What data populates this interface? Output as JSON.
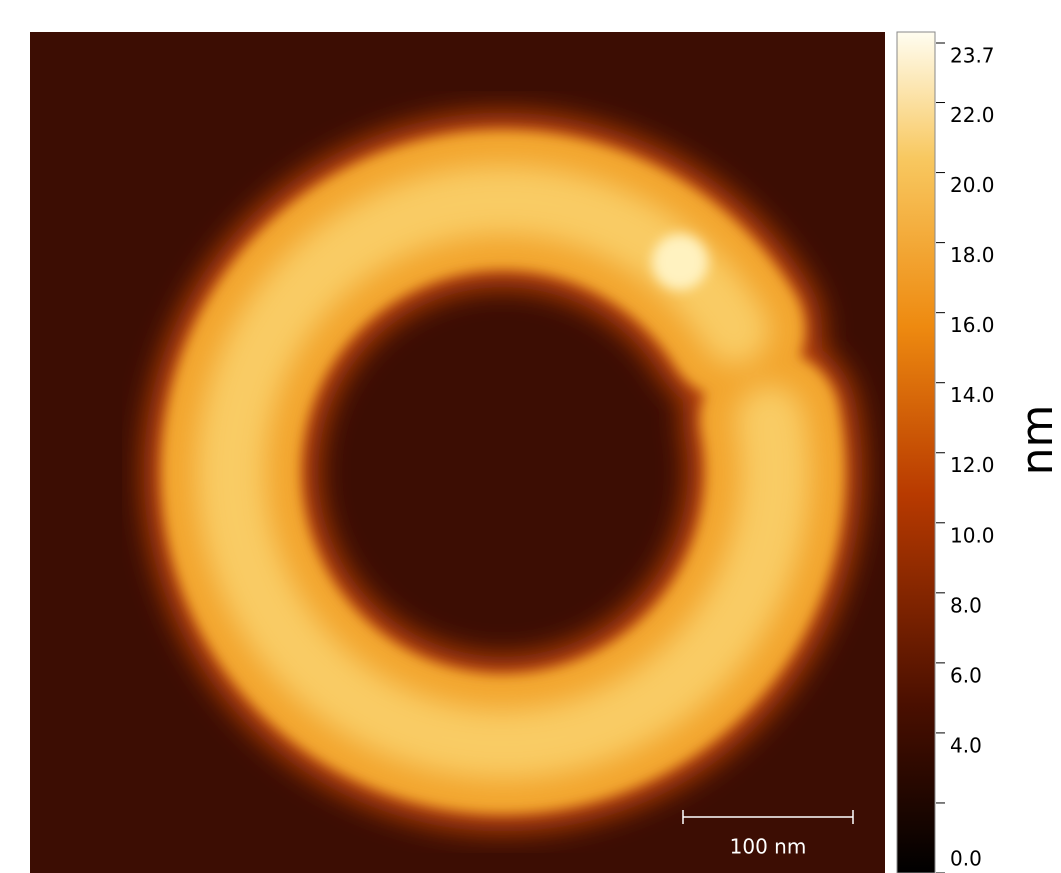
{
  "image": {
    "colorbar": {
      "range": [
        0,
        23.7
      ],
      "ticks": [
        {
          "value": 23.7,
          "label": "23.7"
        },
        {
          "value": 22,
          "label": "22.0"
        },
        {
          "value": 20,
          "label": "20.0"
        },
        {
          "value": 18,
          "label": "18.0"
        },
        {
          "value": 16,
          "label": "16.0"
        },
        {
          "value": 14,
          "label": "14.0"
        },
        {
          "value": 12,
          "label": "12.0"
        },
        {
          "value": 10,
          "label": "10.0"
        },
        {
          "value": 8,
          "label": "8.0"
        },
        {
          "value": 6,
          "label": "6.0"
        },
        {
          "value": 4,
          "label": "4.0"
        },
        {
          "value": 2,
          "label": null
        },
        {
          "value": 0,
          "label": "0.0"
        }
      ],
      "unit": "nm"
    },
    "scale_bar": {
      "label": "100 nm"
    }
  }
}
